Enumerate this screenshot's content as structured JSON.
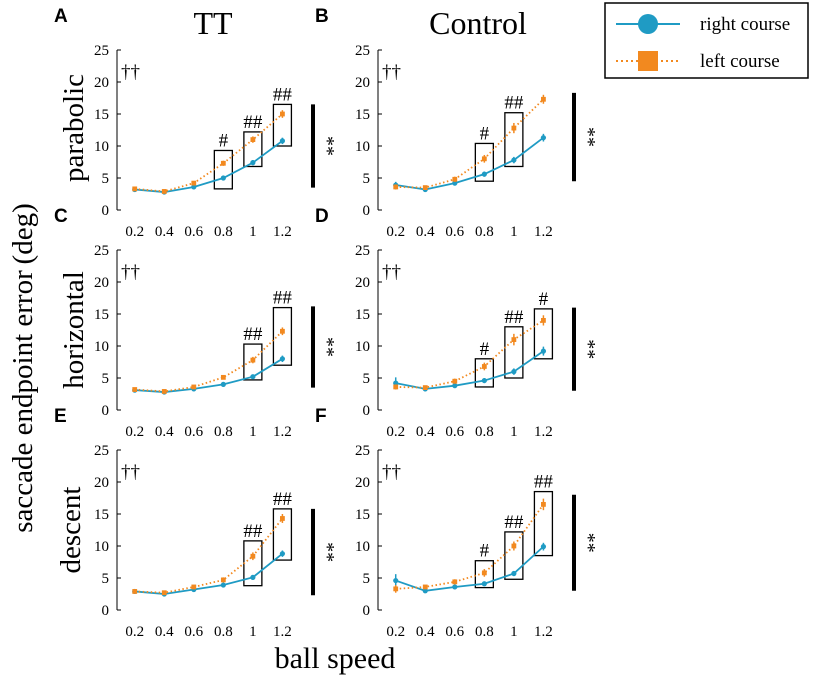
{
  "figure": {
    "col_titles": [
      "TT",
      "Control"
    ],
    "row_titles": [
      "parabolic",
      "horizontal",
      "descent"
    ],
    "ylabel": "saccade endpoint error (deg)",
    "xlabel": "ball speed",
    "legend": [
      "right course",
      "left course"
    ],
    "colors": {
      "right": "#1f9bc4",
      "left": "#f2891f"
    }
  },
  "chart_data": [
    {
      "panel": "A",
      "type": "line",
      "dagger": "††",
      "categories": [
        "0.2",
        "0.4",
        "0.6",
        "0.8",
        "1",
        "1.2"
      ],
      "ylim": [
        0,
        25
      ],
      "yticks": [
        "0",
        "5",
        "10",
        "15",
        "20",
        "25"
      ],
      "series": [
        {
          "name": "right course",
          "values": [
            3.2,
            2.8,
            3.6,
            5.0,
            7.4,
            10.8
          ],
          "err": [
            0.2,
            0.2,
            0.2,
            0.3,
            0.4,
            0.5
          ]
        },
        {
          "name": "left course",
          "values": [
            3.3,
            2.9,
            4.2,
            7.3,
            11.0,
            15.0
          ],
          "err": [
            0.2,
            0.2,
            0.3,
            0.4,
            0.5,
            0.6
          ]
        }
      ],
      "boxes": [
        {
          "cat": 3,
          "y0": 3.3,
          "y1": 9.3,
          "label": "#"
        },
        {
          "cat": 4,
          "y0": 6.8,
          "y1": 12.2,
          "label": "##"
        },
        {
          "cat": 5,
          "y0": 10.0,
          "y1": 16.5,
          "label": "##"
        }
      ],
      "sig": {
        "y0": 3.5,
        "y1": 16.5,
        "label": "**"
      }
    },
    {
      "panel": "B",
      "type": "line",
      "dagger": "††",
      "categories": [
        "0.2",
        "0.4",
        "0.6",
        "0.8",
        "1",
        "1.2"
      ],
      "ylim": [
        0,
        25
      ],
      "yticks": [
        "0",
        "5",
        "10",
        "15",
        "20",
        "25"
      ],
      "series": [
        {
          "name": "right course",
          "values": [
            3.9,
            3.2,
            4.2,
            5.6,
            7.8,
            11.3
          ],
          "err": [
            0.5,
            0.3,
            0.3,
            0.4,
            0.5,
            0.6
          ]
        },
        {
          "name": "left course",
          "values": [
            3.6,
            3.5,
            4.8,
            8.0,
            12.8,
            17.3
          ],
          "err": [
            0.4,
            0.3,
            0.4,
            0.6,
            0.8,
            0.7
          ]
        }
      ],
      "boxes": [
        {
          "cat": 3,
          "y0": 4.5,
          "y1": 10.4,
          "label": "#"
        },
        {
          "cat": 4,
          "y0": 6.8,
          "y1": 15.2,
          "label": "##"
        }
      ],
      "sig": {
        "y0": 4.5,
        "y1": 18.3,
        "label": "**"
      }
    },
    {
      "panel": "C",
      "type": "line",
      "dagger": "††",
      "categories": [
        "0.2",
        "0.4",
        "0.6",
        "0.8",
        "1",
        "1.2"
      ],
      "ylim": [
        0,
        25
      ],
      "yticks": [
        "0",
        "5",
        "10",
        "15",
        "20",
        "25"
      ],
      "series": [
        {
          "name": "right course",
          "values": [
            3.1,
            2.8,
            3.3,
            4.0,
            5.2,
            8.0
          ],
          "err": [
            0.3,
            0.2,
            0.2,
            0.2,
            0.3,
            0.5
          ]
        },
        {
          "name": "left course",
          "values": [
            3.2,
            2.9,
            3.6,
            5.1,
            7.8,
            12.3
          ],
          "err": [
            0.3,
            0.2,
            0.2,
            0.3,
            0.5,
            0.6
          ]
        }
      ],
      "boxes": [
        {
          "cat": 4,
          "y0": 4.7,
          "y1": 10.3,
          "label": "##"
        },
        {
          "cat": 5,
          "y0": 7.0,
          "y1": 16.0,
          "label": "##"
        }
      ],
      "sig": {
        "y0": 3.5,
        "y1": 16.2,
        "label": "**"
      }
    },
    {
      "panel": "D",
      "type": "line",
      "dagger": "††",
      "categories": [
        "0.2",
        "0.4",
        "0.6",
        "0.8",
        "1",
        "1.2"
      ],
      "ylim": [
        0,
        25
      ],
      "yticks": [
        "0",
        "5",
        "10",
        "15",
        "20",
        "25"
      ],
      "series": [
        {
          "name": "right course",
          "values": [
            4.2,
            3.3,
            3.8,
            4.6,
            6.0,
            9.2
          ],
          "err": [
            0.9,
            0.4,
            0.3,
            0.4,
            0.5,
            0.7
          ]
        },
        {
          "name": "left course",
          "values": [
            3.6,
            3.5,
            4.5,
            6.8,
            11.0,
            14.0
          ],
          "err": [
            0.4,
            0.3,
            0.4,
            0.6,
            0.9,
            0.8
          ]
        }
      ],
      "boxes": [
        {
          "cat": 3,
          "y0": 3.6,
          "y1": 8.0,
          "label": "#"
        },
        {
          "cat": 4,
          "y0": 5.0,
          "y1": 13.0,
          "label": "##"
        },
        {
          "cat": 5,
          "y0": 8.0,
          "y1": 15.8,
          "label": "#"
        }
      ],
      "sig": {
        "y0": 3.0,
        "y1": 16.0,
        "label": "**"
      }
    },
    {
      "panel": "E",
      "type": "line",
      "dagger": "††",
      "categories": [
        "0.2",
        "0.4",
        "0.6",
        "0.8",
        "1",
        "1.2"
      ],
      "ylim": [
        0,
        25
      ],
      "yticks": [
        "0",
        "5",
        "10",
        "15",
        "20",
        "25"
      ],
      "series": [
        {
          "name": "right course",
          "values": [
            2.9,
            2.5,
            3.2,
            3.9,
            5.1,
            8.8
          ],
          "err": [
            0.2,
            0.2,
            0.2,
            0.3,
            0.3,
            0.5
          ]
        },
        {
          "name": "left course",
          "values": [
            2.9,
            2.7,
            3.6,
            4.7,
            8.4,
            14.3
          ],
          "err": [
            0.2,
            0.2,
            0.3,
            0.4,
            0.6,
            0.7
          ]
        }
      ],
      "boxes": [
        {
          "cat": 4,
          "y0": 3.8,
          "y1": 10.8,
          "label": "##"
        },
        {
          "cat": 5,
          "y0": 7.8,
          "y1": 15.8,
          "label": "##"
        }
      ],
      "sig": {
        "y0": 2.3,
        "y1": 15.8,
        "label": "**"
      }
    },
    {
      "panel": "F",
      "type": "line",
      "dagger": "††",
      "categories": [
        "0.2",
        "0.4",
        "0.6",
        "0.8",
        "1",
        "1.2"
      ],
      "ylim": [
        0,
        25
      ],
      "yticks": [
        "0",
        "5",
        "10",
        "15",
        "20",
        "25"
      ],
      "series": [
        {
          "name": "right course",
          "values": [
            4.6,
            3.0,
            3.6,
            4.1,
            5.7,
            9.9
          ],
          "err": [
            1.0,
            0.3,
            0.3,
            0.3,
            0.4,
            0.6
          ]
        },
        {
          "name": "left course",
          "values": [
            3.3,
            3.6,
            4.4,
            5.8,
            10.0,
            16.5
          ],
          "err": [
            0.6,
            0.3,
            0.4,
            0.6,
            0.7,
            0.9
          ]
        }
      ],
      "boxes": [
        {
          "cat": 3,
          "y0": 3.5,
          "y1": 7.7,
          "label": "#"
        },
        {
          "cat": 4,
          "y0": 4.8,
          "y1": 12.2,
          "label": "##"
        },
        {
          "cat": 5,
          "y0": 8.5,
          "y1": 18.5,
          "label": "##"
        }
      ],
      "sig": {
        "y0": 3.0,
        "y1": 18.0,
        "label": "**"
      }
    }
  ]
}
